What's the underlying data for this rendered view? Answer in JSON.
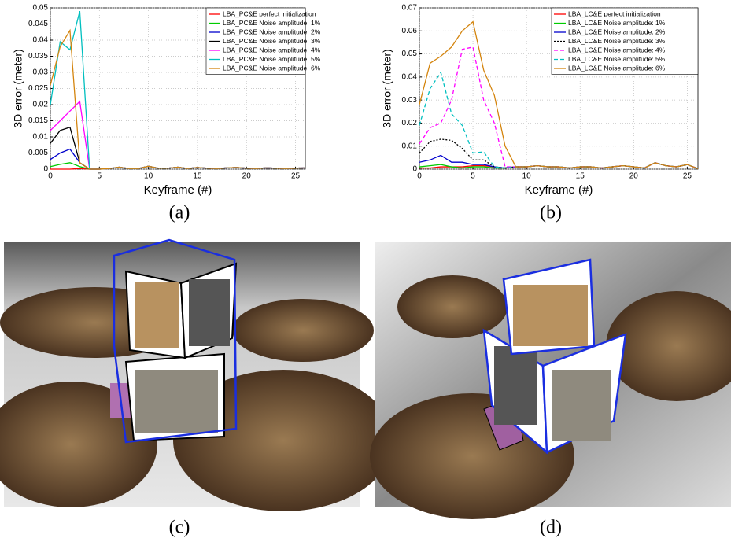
{
  "chart_data": [
    {
      "type": "line",
      "xlabel": "Keyframe (#)",
      "ylabel": "3D error (meter)",
      "x": [
        0,
        1,
        2,
        3,
        4,
        5,
        6,
        7,
        8,
        9,
        10,
        11,
        12,
        13,
        14,
        15,
        16,
        17,
        18,
        19,
        20,
        21,
        22,
        23,
        24,
        25,
        26
      ],
      "xlim": [
        0,
        26
      ],
      "xticks": [
        0,
        5,
        10,
        15,
        20,
        25
      ],
      "ylim": [
        0,
        0.05
      ],
      "yticks": [
        0,
        0.005,
        0.01,
        0.015,
        0.02,
        0.025,
        0.03,
        0.035,
        0.04,
        0.045,
        0.05
      ],
      "grid": true,
      "legend": "top-right",
      "series": [
        {
          "name": "LBA_PC&E perfect initialization",
          "color": "#ff0000",
          "values": [
            0,
            0,
            0,
            0.0002,
            0,
            0,
            0.0002,
            0.0006,
            0.0002,
            0.0002,
            0.0009,
            0.0003,
            0.0003,
            0.0006,
            0.0002,
            0.0005,
            0.0003,
            0.0002,
            0.0004,
            0.0005,
            0.0003,
            0.0002,
            0.0004,
            0.0003,
            0.0002,
            0.0003,
            0.0004
          ]
        },
        {
          "name": "LBA_PC&E Noise amplitude: 1%",
          "color": "#00cc00",
          "values": [
            0.0008,
            0.0015,
            0.002,
            0.0008,
            0,
            0,
            0.0002,
            0.0006,
            0.0002,
            0.0002,
            0.0009,
            0.0003,
            0.0003,
            0.0006,
            0.0002,
            0.0005,
            0.0003,
            0.0002,
            0.0004,
            0.0005,
            0.0003,
            0.0002,
            0.0004,
            0.0003,
            0.0002,
            0.0003,
            0.0004
          ]
        },
        {
          "name": "LBA_PC&E Noise amplitude: 2%",
          "color": "#0000cc",
          "values": [
            0.003,
            0.005,
            0.0062,
            0.002,
            0,
            0,
            0.0002,
            0.0006,
            0.0002,
            0.0002,
            0.0009,
            0.0003,
            0.0003,
            0.0006,
            0.0002,
            0.0005,
            0.0003,
            0.0002,
            0.0004,
            0.0005,
            0.0003,
            0.0002,
            0.0004,
            0.0003,
            0.0002,
            0.0003,
            0.0004
          ]
        },
        {
          "name": "LBA_PC&E Noise amplitude: 3%",
          "color": "#000000",
          "values": [
            0.008,
            0.012,
            0.013,
            0.002,
            0,
            0,
            0.0002,
            0.0006,
            0.0002,
            0.0002,
            0.0009,
            0.0003,
            0.0003,
            0.0006,
            0.0002,
            0.0005,
            0.0003,
            0.0002,
            0.0004,
            0.0005,
            0.0003,
            0.0002,
            0.0004,
            0.0003,
            0.0002,
            0.0003,
            0.0004
          ]
        },
        {
          "name": "LBA_PC&E Noise amplitude: 4%",
          "color": "#ff00ff",
          "values": [
            0.012,
            0.015,
            0.018,
            0.021,
            0,
            0,
            0.0002,
            0.0006,
            0.0002,
            0.0002,
            0.0009,
            0.0003,
            0.0003,
            0.0006,
            0.0002,
            0.0005,
            0.0003,
            0.0002,
            0.0004,
            0.0005,
            0.0003,
            0.0002,
            0.0004,
            0.0003,
            0.0002,
            0.0003,
            0.0004
          ]
        },
        {
          "name": "LBA_PC&E Noise amplitude: 5%",
          "color": "#00bfbf",
          "values": [
            0.02,
            0.0395,
            0.037,
            0.049,
            0,
            0,
            0.0002,
            0.0006,
            0.0002,
            0.0002,
            0.0009,
            0.0003,
            0.0003,
            0.0006,
            0.0002,
            0.0005,
            0.0003,
            0.0002,
            0.0004,
            0.0005,
            0.0003,
            0.0002,
            0.0004,
            0.0003,
            0.0002,
            0.0003,
            0.0004
          ]
        },
        {
          "name": "LBA_PC&E Noise amplitude: 6%",
          "color": "#d4850f",
          "values": [
            0.026,
            0.038,
            0.043,
            0.002,
            0,
            0,
            0.0002,
            0.0006,
            0.0002,
            0.0002,
            0.0009,
            0.0003,
            0.0003,
            0.0006,
            0.0002,
            0.0005,
            0.0003,
            0.0002,
            0.0004,
            0.0005,
            0.0003,
            0.0002,
            0.0004,
            0.0003,
            0.0002,
            0.0003,
            0.0004
          ]
        }
      ]
    },
    {
      "type": "line",
      "xlabel": "Keyframe (#)",
      "ylabel": "3D error (meter)",
      "x": [
        0,
        1,
        2,
        3,
        4,
        5,
        6,
        7,
        8,
        9,
        10,
        11,
        12,
        13,
        14,
        15,
        16,
        17,
        18,
        19,
        20,
        21,
        22,
        23,
        24,
        25,
        26
      ],
      "xlim": [
        0,
        26
      ],
      "xticks": [
        0,
        5,
        10,
        15,
        20,
        25
      ],
      "ylim": [
        0,
        0.07
      ],
      "yticks": [
        0,
        0.01,
        0.02,
        0.03,
        0.04,
        0.05,
        0.06,
        0.07
      ],
      "grid": true,
      "legend": "top-right",
      "series": [
        {
          "name": "LBA_LC&E perfect initialization",
          "color": "#ff0000",
          "values": [
            0.0005,
            0.0005,
            0.001,
            0.001,
            0.001,
            0.0015,
            0.0015,
            0.001,
            0.0005,
            0.001,
            0.001,
            0.0015,
            0.001,
            0.001,
            0.0005,
            0.001,
            0.001,
            0.0005,
            0.001,
            0.0015,
            0.001,
            0.0005,
            0.0028,
            0.0015,
            0.001,
            0.002,
            0.0002
          ]
        },
        {
          "name": "LBA_LC&E Noise amplitude: 1%",
          "color": "#00cc00",
          "values": [
            0.001,
            0.0015,
            0.002,
            0.001,
            0.0005,
            0.001,
            0.001,
            0.0005,
            0.0005,
            0.001,
            0.001,
            0.0015,
            0.001,
            0.001,
            0.0005,
            0.001,
            0.001,
            0.0005,
            0.001,
            0.0015,
            0.001,
            0.0005,
            0.0028,
            0.0015,
            0.001,
            0.002,
            0.0002
          ]
        },
        {
          "name": "LBA_LC&E Noise amplitude: 2%",
          "color": "#0000cc",
          "values": [
            0.003,
            0.004,
            0.006,
            0.003,
            0.003,
            0.002,
            0.002,
            0.001,
            0.0005,
            0.001,
            0.001,
            0.0015,
            0.001,
            0.001,
            0.0005,
            0.001,
            0.001,
            0.0005,
            0.001,
            0.0015,
            0.001,
            0.0005,
            0.0028,
            0.0015,
            0.001,
            0.002,
            0.0002
          ]
        },
        {
          "name": "LBA_LC&E Noise amplitude: 3%",
          "color": "#000000",
          "style": "dotted",
          "values": [
            0.007,
            0.012,
            0.013,
            0.0125,
            0.009,
            0.004,
            0.004,
            0.001,
            0.0005,
            0.001,
            0.001,
            0.0015,
            0.001,
            0.001,
            0.0005,
            0.001,
            0.001,
            0.0005,
            0.001,
            0.0015,
            0.001,
            0.0005,
            0.0028,
            0.0015,
            0.001,
            0.002,
            0.0002
          ]
        },
        {
          "name": "LBA_LC&E Noise amplitude: 4%",
          "color": "#ff00ff",
          "style": "dashed",
          "values": [
            0.011,
            0.018,
            0.02,
            0.03,
            0.052,
            0.053,
            0.03,
            0.02,
            0.001,
            0.001,
            0.001,
            0.0015,
            0.001,
            0.001,
            0.0005,
            0.001,
            0.001,
            0.0005,
            0.001,
            0.0015,
            0.001,
            0.0005,
            0.0028,
            0.0015,
            0.001,
            0.002,
            0.0002
          ]
        },
        {
          "name": "LBA_LC&E Noise amplitude: 5%",
          "color": "#00bfbf",
          "style": "dashed",
          "values": [
            0.019,
            0.035,
            0.042,
            0.024,
            0.019,
            0.007,
            0.0075,
            0.001,
            0.0005,
            0.001,
            0.001,
            0.0015,
            0.001,
            0.001,
            0.0005,
            0.001,
            0.001,
            0.0005,
            0.001,
            0.0015,
            0.001,
            0.0005,
            0.0028,
            0.0015,
            0.001,
            0.002,
            0.0002
          ]
        },
        {
          "name": "LBA_LC&E Noise amplitude: 6%",
          "color": "#d4850f",
          "values": [
            0.028,
            0.046,
            0.049,
            0.053,
            0.06,
            0.064,
            0.043,
            0.032,
            0.01,
            0.001,
            0.001,
            0.0015,
            0.001,
            0.001,
            0.0005,
            0.001,
            0.001,
            0.0005,
            0.001,
            0.0015,
            0.001,
            0.0005,
            0.0028,
            0.0015,
            0.001,
            0.002,
            0.0002
          ]
        }
      ]
    }
  ],
  "captions": [
    "(a)",
    "(b)",
    "(c)",
    "(d)"
  ]
}
